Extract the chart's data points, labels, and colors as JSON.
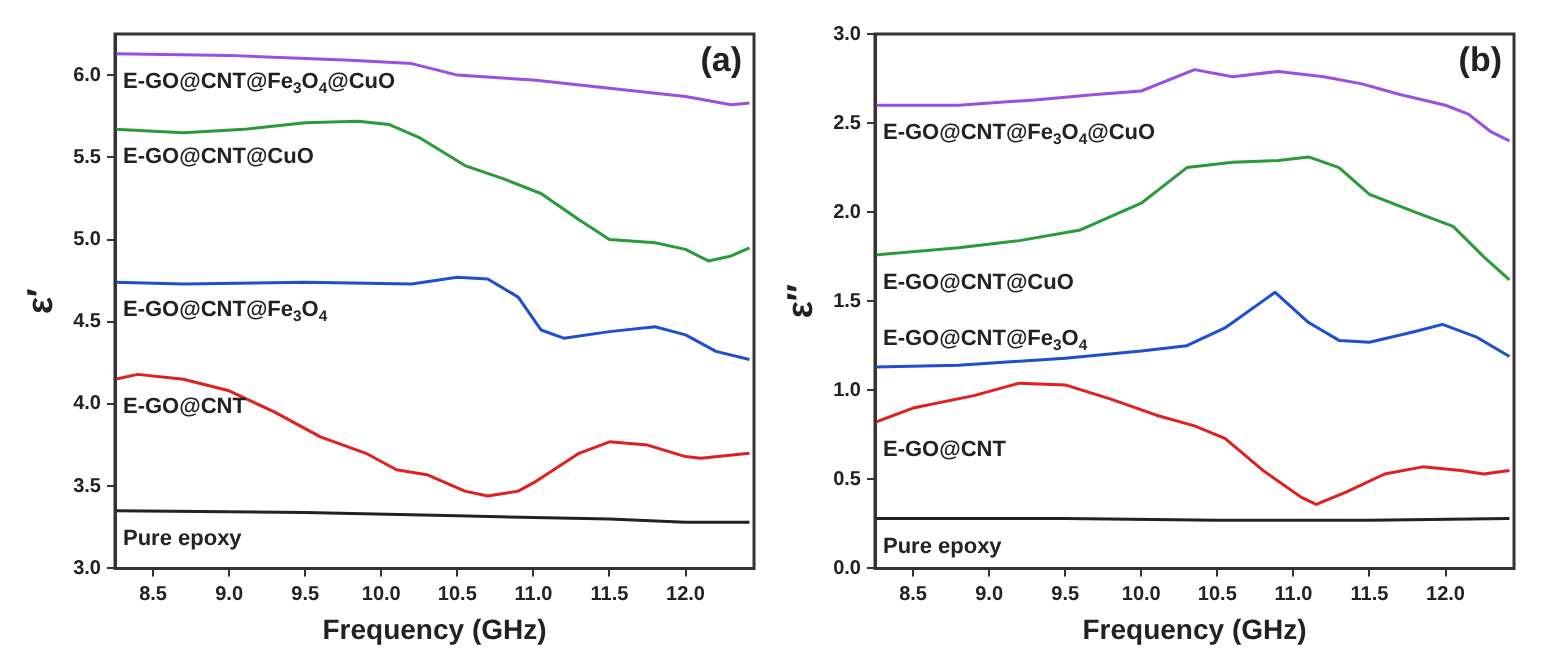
{
  "chart_data": [
    {
      "type": "line",
      "xlabel": "Frequency (GHz)",
      "ylabel": "ε′",
      "xlim": [
        8.25,
        12.45
      ],
      "ylim": [
        3.0,
        6.25
      ],
      "xticks": [
        {
          "value": 8.5,
          "label": "8.5"
        },
        {
          "value": 9.0,
          "label": "9.0"
        },
        {
          "value": 9.5,
          "label": "9.5"
        },
        {
          "value": 10.0,
          "label": "10.0"
        },
        {
          "value": 10.5,
          "label": "10.5"
        },
        {
          "value": 11.0,
          "label": "11.0"
        },
        {
          "value": 11.5,
          "label": "11.5"
        },
        {
          "value": 12.0,
          "label": "12.0"
        }
      ],
      "yticks": [
        {
          "value": 3.0,
          "label": "3.0"
        },
        {
          "value": 3.5,
          "label": "3.5"
        },
        {
          "value": 4.0,
          "label": "4.0"
        },
        {
          "value": 4.5,
          "label": "4.5"
        },
        {
          "value": 5.0,
          "label": "5.0"
        },
        {
          "value": 5.5,
          "label": "5.5"
        },
        {
          "value": 6.0,
          "label": "6.0"
        }
      ],
      "grid": false,
      "legend": false,
      "marker": "none",
      "line_style": "solid",
      "series": [
        {
          "name": "E-GO@CNT@Fe$_{3}$O$_{4}$@CuO",
          "color": "#9b4fe0",
          "x": [
            8.25,
            9.0,
            9.8,
            10.2,
            10.5,
            11.0,
            11.5,
            12.0,
            12.3,
            12.42
          ],
          "values": [
            6.13,
            6.12,
            6.09,
            6.07,
            6.0,
            5.97,
            5.92,
            5.87,
            5.82,
            5.83
          ]
        },
        {
          "name": "E-GO@CNT@CuO",
          "color": "#2a9a3a",
          "x": [
            8.25,
            8.7,
            9.1,
            9.5,
            9.85,
            10.05,
            10.25,
            10.55,
            10.8,
            11.05,
            11.3,
            11.5,
            11.8,
            12.0,
            12.15,
            12.3,
            12.42
          ],
          "values": [
            5.67,
            5.65,
            5.67,
            5.71,
            5.72,
            5.7,
            5.62,
            5.45,
            5.37,
            5.28,
            5.12,
            5.0,
            4.98,
            4.94,
            4.87,
            4.9,
            4.95
          ]
        },
        {
          "name": "E-GO@CNT@Fe$_{3}$O$_{4}$",
          "color": "#1f4fcf",
          "x": [
            8.25,
            8.7,
            9.5,
            10.2,
            10.5,
            10.7,
            10.9,
            11.05,
            11.2,
            11.5,
            11.8,
            12.0,
            12.2,
            12.42
          ],
          "values": [
            4.74,
            4.73,
            4.74,
            4.73,
            4.77,
            4.76,
            4.65,
            4.45,
            4.4,
            4.44,
            4.47,
            4.42,
            4.32,
            4.27
          ]
        },
        {
          "name": "E-GO@CNT",
          "color": "#e02020",
          "x": [
            8.25,
            8.4,
            8.7,
            9.0,
            9.3,
            9.6,
            9.9,
            10.1,
            10.3,
            10.55,
            10.7,
            10.9,
            11.0,
            11.3,
            11.5,
            11.75,
            12.0,
            12.1,
            12.42
          ],
          "values": [
            4.15,
            4.18,
            4.15,
            4.08,
            3.95,
            3.8,
            3.7,
            3.6,
            3.57,
            3.47,
            3.44,
            3.47,
            3.52,
            3.7,
            3.77,
            3.75,
            3.68,
            3.67,
            3.7
          ]
        },
        {
          "name": "Pure epoxy",
          "color": "#222222",
          "x": [
            8.25,
            9.5,
            10.5,
            11.5,
            12.0,
            12.42
          ],
          "values": [
            3.35,
            3.34,
            3.32,
            3.3,
            3.28,
            3.28
          ]
        }
      ],
      "annotations": [
        "(a)"
      ]
    },
    {
      "type": "line",
      "xlabel": "Frequency (GHz)",
      "ylabel": "ε″",
      "xlim": [
        8.25,
        12.45
      ],
      "ylim": [
        0.0,
        3.0
      ],
      "xticks": [
        {
          "value": 8.5,
          "label": "8.5"
        },
        {
          "value": 9.0,
          "label": "9.0"
        },
        {
          "value": 9.5,
          "label": "9.5"
        },
        {
          "value": 10.0,
          "label": "10.0"
        },
        {
          "value": 10.5,
          "label": "10.5"
        },
        {
          "value": 11.0,
          "label": "11.0"
        },
        {
          "value": 11.5,
          "label": "11.5"
        },
        {
          "value": 12.0,
          "label": "12.0"
        }
      ],
      "yticks": [
        {
          "value": 0.0,
          "label": "0.0"
        },
        {
          "value": 0.5,
          "label": "0.5"
        },
        {
          "value": 1.0,
          "label": "1.0"
        },
        {
          "value": 1.5,
          "label": "1.5"
        },
        {
          "value": 2.0,
          "label": "2.0"
        },
        {
          "value": 2.5,
          "label": "2.5"
        },
        {
          "value": 3.0,
          "label": "3.0"
        }
      ],
      "grid": false,
      "legend": false,
      "marker": "none",
      "line_style": "solid",
      "series": [
        {
          "name": "E-GO@CNT@Fe$_{3}$O$_{4}$@CuO",
          "color": "#9b4fe0",
          "x": [
            8.25,
            8.8,
            9.3,
            9.7,
            10.0,
            10.35,
            10.6,
            10.9,
            11.2,
            11.45,
            11.7,
            12.0,
            12.15,
            12.3,
            12.42
          ],
          "values": [
            2.6,
            2.6,
            2.63,
            2.66,
            2.68,
            2.8,
            2.76,
            2.79,
            2.76,
            2.72,
            2.66,
            2.6,
            2.55,
            2.45,
            2.4
          ]
        },
        {
          "name": "E-GO@CNT@CuO",
          "color": "#2a9a3a",
          "x": [
            8.25,
            8.8,
            9.2,
            9.6,
            10.0,
            10.3,
            10.6,
            10.9,
            11.1,
            11.3,
            11.5,
            11.8,
            12.05,
            12.25,
            12.42
          ],
          "values": [
            1.76,
            1.8,
            1.84,
            1.9,
            2.05,
            2.25,
            2.28,
            2.29,
            2.31,
            2.25,
            2.1,
            2.0,
            1.92,
            1.75,
            1.62
          ]
        },
        {
          "name": "E-GO@CNT@Fe$_{3}$O$_{4}$",
          "color": "#1f4fcf",
          "x": [
            8.25,
            8.8,
            9.5,
            10.0,
            10.3,
            10.55,
            10.88,
            11.1,
            11.3,
            11.5,
            11.8,
            11.98,
            12.2,
            12.42
          ],
          "values": [
            1.13,
            1.14,
            1.18,
            1.22,
            1.25,
            1.35,
            1.55,
            1.38,
            1.28,
            1.27,
            1.33,
            1.37,
            1.3,
            1.19
          ]
        },
        {
          "name": "E-GO@CNT",
          "color": "#e02020",
          "x": [
            8.25,
            8.5,
            8.9,
            9.2,
            9.5,
            9.8,
            10.1,
            10.35,
            10.55,
            10.8,
            11.05,
            11.15,
            11.35,
            11.6,
            11.85,
            12.1,
            12.25,
            12.42
          ],
          "values": [
            0.82,
            0.9,
            0.97,
            1.04,
            1.03,
            0.95,
            0.86,
            0.8,
            0.73,
            0.55,
            0.4,
            0.36,
            0.43,
            0.53,
            0.57,
            0.55,
            0.53,
            0.55
          ]
        },
        {
          "name": "Pure epoxy",
          "color": "#222222",
          "x": [
            8.25,
            9.5,
            10.5,
            11.5,
            12.42
          ],
          "values": [
            0.28,
            0.28,
            0.27,
            0.27,
            0.28
          ]
        }
      ],
      "annotations": [
        "(b)"
      ]
    }
  ]
}
